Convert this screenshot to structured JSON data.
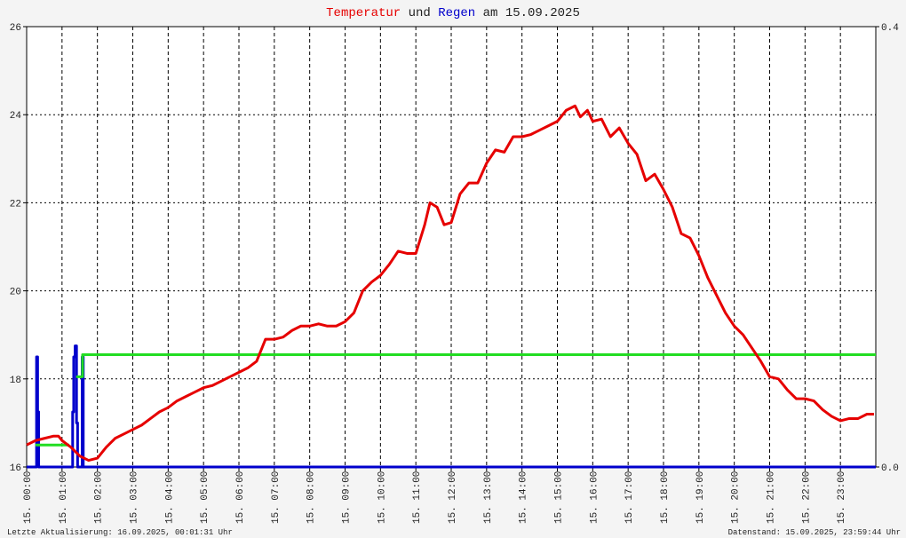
{
  "chart_data": {
    "type": "line",
    "title_parts": [
      "und",
      "am 15.09.2025"
    ],
    "footer_left": "Letzte Aktualisierung: 16.09.2025, 00:01:31 Uhr",
    "footer_right": "Datenstand: 15.09.2025, 23:59:44 Uhr",
    "xlim": [
      0,
      24
    ],
    "xticks": [
      {
        "value": 0,
        "label": "15. 00:00"
      },
      {
        "value": 1,
        "label": "15. 01:00"
      },
      {
        "value": 2,
        "label": "15. 02:00"
      },
      {
        "value": 3,
        "label": "15. 03:00"
      },
      {
        "value": 4,
        "label": "15. 04:00"
      },
      {
        "value": 5,
        "label": "15. 05:00"
      },
      {
        "value": 6,
        "label": "15. 06:00"
      },
      {
        "value": 7,
        "label": "15. 07:00"
      },
      {
        "value": 8,
        "label": "15. 08:00"
      },
      {
        "value": 9,
        "label": "15. 09:00"
      },
      {
        "value": 10,
        "label": "15. 10:00"
      },
      {
        "value": 11,
        "label": "15. 11:00"
      },
      {
        "value": 12,
        "label": "15. 12:00"
      },
      {
        "value": 13,
        "label": "15. 13:00"
      },
      {
        "value": 14,
        "label": "15. 14:00"
      },
      {
        "value": 15,
        "label": "15. 15:00"
      },
      {
        "value": 16,
        "label": "15. 16:00"
      },
      {
        "value": 17,
        "label": "15. 17:00"
      },
      {
        "value": 18,
        "label": "15. 18:00"
      },
      {
        "value": 19,
        "label": "15. 19:00"
      },
      {
        "value": 20,
        "label": "15. 20:00"
      },
      {
        "value": 21,
        "label": "15. 21:00"
      },
      {
        "value": 22,
        "label": "15. 22:00"
      },
      {
        "value": 23,
        "label": "15. 23:00"
      }
    ],
    "ylim": [
      16,
      26
    ],
    "yticks": [
      16,
      18,
      20,
      22,
      24,
      26
    ],
    "y2lim": [
      0,
      0.4
    ],
    "y2ticks": [
      {
        "value": 0,
        "label": "0.0"
      },
      {
        "value": 0.4,
        "label": "0.4"
      }
    ],
    "grid": true,
    "series": [
      {
        "name": "Temperatur",
        "color": "#e60000",
        "x": [
          0,
          0.25,
          0.5,
          0.75,
          0.9,
          1,
          1.25,
          1.5,
          1.75,
          2,
          2.25,
          2.5,
          2.75,
          3,
          3.25,
          3.5,
          3.75,
          4,
          4.25,
          4.5,
          4.75,
          5,
          5.25,
          5.5,
          5.75,
          6,
          6.25,
          6.5,
          6.75,
          7,
          7.25,
          7.5,
          7.75,
          8,
          8.25,
          8.5,
          8.75,
          9,
          9.25,
          9.5,
          9.75,
          10,
          10.25,
          10.5,
          10.75,
          11,
          11.25,
          11.4,
          11.6,
          11.8,
          12,
          12.25,
          12.5,
          12.75,
          13,
          13.25,
          13.5,
          13.75,
          14,
          14.25,
          14.5,
          14.75,
          15,
          15.25,
          15.5,
          15.65,
          15.85,
          16,
          16.25,
          16.5,
          16.75,
          17,
          17.25,
          17.5,
          17.75,
          18,
          18.25,
          18.5,
          18.75,
          19,
          19.25,
          19.5,
          19.75,
          20,
          20.25,
          20.5,
          20.75,
          21,
          21.25,
          21.5,
          21.75,
          22,
          22.25,
          22.5,
          22.75,
          23,
          23.25,
          23.5,
          23.75,
          23.95
        ],
        "values": [
          16.5,
          16.6,
          16.65,
          16.7,
          16.7,
          16.6,
          16.45,
          16.25,
          16.15,
          16.2,
          16.45,
          16.65,
          16.75,
          16.85,
          16.95,
          17.1,
          17.25,
          17.35,
          17.5,
          17.6,
          17.7,
          17.8,
          17.85,
          17.95,
          18.05,
          18.15,
          18.25,
          18.4,
          18.9,
          18.9,
          18.95,
          19.1,
          19.2,
          19.2,
          19.25,
          19.2,
          19.2,
          19.3,
          19.5,
          20,
          20.2,
          20.35,
          20.6,
          20.9,
          20.85,
          20.85,
          21.5,
          22,
          21.9,
          21.5,
          21.55,
          22.2,
          22.45,
          22.45,
          22.9,
          23.2,
          23.15,
          23.5,
          23.5,
          23.55,
          23.65,
          23.75,
          23.85,
          24.1,
          24.2,
          23.95,
          24.1,
          23.85,
          23.9,
          23.5,
          23.7,
          23.35,
          23.1,
          22.5,
          22.65,
          22.3,
          21.9,
          21.3,
          21.2,
          20.8,
          20.3,
          19.9,
          19.5,
          19.2,
          19,
          18.7,
          18.4,
          18.05,
          18,
          17.75,
          17.55,
          17.55,
          17.5,
          17.3,
          17.15,
          17.05,
          17.1,
          17.1,
          17.2,
          17.2
        ]
      },
      {
        "name": "Regen",
        "color": "#0000cc",
        "axis": "y2",
        "x": [
          0,
          0.28,
          0.28,
          0.31,
          0.31,
          0.34,
          0.34,
          1.3,
          1.3,
          1.33,
          1.33,
          1.37,
          1.37,
          1.41,
          1.41,
          1.44,
          1.44,
          1.57,
          1.57,
          1.6,
          1.6,
          24
        ],
        "values": [
          0,
          0,
          0.1,
          0.1,
          0.05,
          0.05,
          0,
          0,
          0.05,
          0.05,
          0.1,
          0.1,
          0.11,
          0.11,
          0.04,
          0.04,
          0,
          0,
          0.1,
          0.1,
          0,
          0
        ]
      },
      {
        "color": "#22dd22",
        "axis": "y2",
        "x": [
          0.25,
          1.2,
          1.25,
          1.4,
          1.58,
          1.58,
          24
        ],
        "values": [
          0.02,
          0.02,
          null,
          0.082,
          0.082,
          0.102,
          0.102
        ]
      }
    ]
  }
}
